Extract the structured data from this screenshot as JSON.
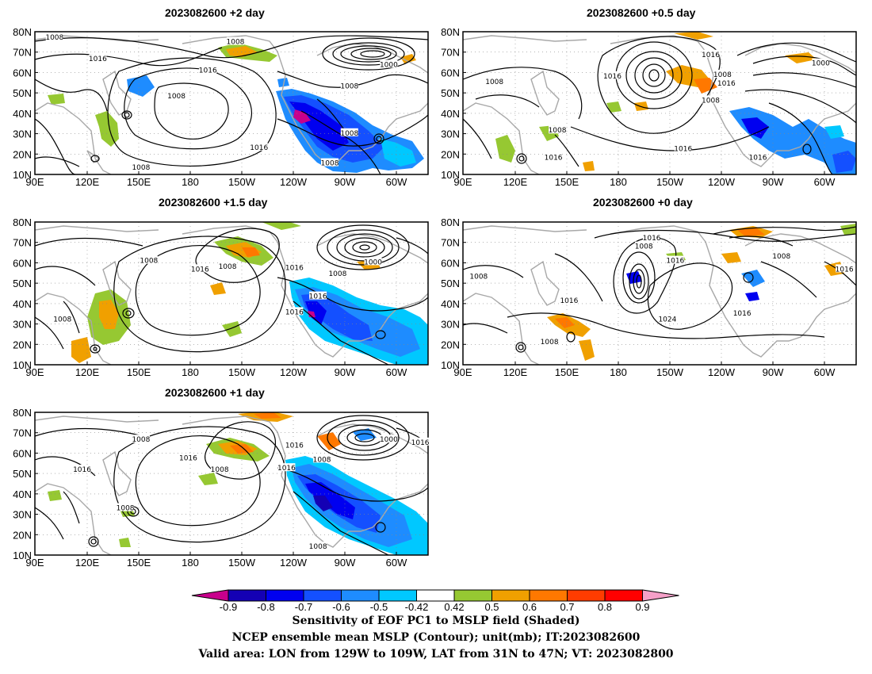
{
  "panels": [
    {
      "id": "p_2day",
      "title": "2023082600 +2 day"
    },
    {
      "id": "p_05day",
      "title": "2023082600 +0.5 day"
    },
    {
      "id": "p_15day",
      "title": "2023082600 +1.5 day"
    },
    {
      "id": "p_0day",
      "title": "2023082600 +0 day"
    },
    {
      "id": "p_1day",
      "title": "2023082600 +1 day"
    }
  ],
  "axes": {
    "lat_labels": [
      "80N",
      "70N",
      "60N",
      "50N",
      "40N",
      "30N",
      "20N",
      "10N"
    ],
    "lon_labels": [
      "90E",
      "120E",
      "150E",
      "180",
      "150W",
      "120W",
      "90W",
      "60W"
    ]
  },
  "contour_labels": {
    "p_2day": [
      [
        "1008",
        0.05,
        0.04
      ],
      [
        "1016",
        0.16,
        0.19
      ],
      [
        "1016",
        0.44,
        0.27
      ],
      [
        "1008",
        0.51,
        0.07
      ],
      [
        "1008",
        0.36,
        0.45
      ],
      [
        "1000",
        0.9,
        0.23
      ],
      [
        "1008",
        0.8,
        0.38
      ],
      [
        "1008",
        0.8,
        0.71
      ],
      [
        "1008",
        0.75,
        0.92
      ],
      [
        "1016",
        0.57,
        0.81
      ],
      [
        "1008",
        0.27,
        0.95
      ]
    ],
    "p_05day": [
      [
        "1016",
        0.63,
        0.16
      ],
      [
        "1000",
        0.91,
        0.22
      ],
      [
        "1016",
        0.38,
        0.31
      ],
      [
        "1008",
        0.63,
        0.48
      ],
      [
        "1008",
        0.66,
        0.3
      ],
      [
        "1016",
        0.67,
        0.36
      ],
      [
        "1008",
        0.08,
        0.35
      ],
      [
        "1016",
        0.23,
        0.88
      ],
      [
        "1016",
        0.56,
        0.82
      ],
      [
        "1016",
        0.75,
        0.88
      ],
      [
        "1008",
        0.24,
        0.69
      ]
    ],
    "p_15day": [
      [
        "1008",
        0.29,
        0.27
      ],
      [
        "1016",
        0.42,
        0.33
      ],
      [
        "1008",
        0.49,
        0.31
      ],
      [
        "1016",
        0.66,
        0.32
      ],
      [
        "1000",
        0.86,
        0.28
      ],
      [
        "1008",
        0.77,
        0.36
      ],
      [
        "1016",
        0.72,
        0.52
      ],
      [
        "1016",
        0.66,
        0.63
      ],
      [
        "1008",
        0.07,
        0.68
      ]
    ],
    "p_0day": [
      [
        "1016",
        0.48,
        0.11
      ],
      [
        "1008",
        0.46,
        0.17
      ],
      [
        "1016",
        0.54,
        0.27
      ],
      [
        "1008",
        0.81,
        0.24
      ],
      [
        "1016",
        0.97,
        0.33
      ],
      [
        "1008",
        0.04,
        0.38
      ],
      [
        "1016",
        0.27,
        0.55
      ],
      [
        "1024",
        0.52,
        0.68
      ],
      [
        "1016",
        0.71,
        0.64
      ],
      [
        "1008",
        0.22,
        0.84
      ]
    ],
    "p_1day": [
      [
        "1008",
        0.27,
        0.19
      ],
      [
        "1016",
        0.66,
        0.23
      ],
      [
        "1016",
        0.39,
        0.32
      ],
      [
        "1008",
        0.47,
        0.4
      ],
      [
        "1008",
        0.73,
        0.33
      ],
      [
        "1000",
        0.9,
        0.19
      ],
      [
        "1016",
        0.98,
        0.21
      ],
      [
        "1016",
        0.12,
        0.4
      ],
      [
        "1016",
        0.64,
        0.39
      ],
      [
        "1008",
        0.23,
        0.67
      ],
      [
        "1008",
        0.72,
        0.94
      ]
    ]
  },
  "colorbar": {
    "labels": [
      "-0.9",
      "-0.8",
      "-0.7",
      "-0.6",
      "-0.5",
      "-0.42",
      "0.42",
      "0.5",
      "0.6",
      "0.7",
      "0.8",
      "0.9"
    ],
    "colors": [
      "#c8008c",
      "#1400b4",
      "#0000f0",
      "#1450ff",
      "#1e8cff",
      "#00c8ff",
      "#ffffff",
      "#96c832",
      "#f0a000",
      "#ff7800",
      "#ff3c00",
      "#ff0000",
      "#f5a0c8"
    ],
    "neg_colors": {
      "-0.9": "#1400b4",
      "-0.8": "#0000f0",
      "-0.7": "#1450ff",
      "-0.6": "#1e8cff",
      "-0.5": "#00c8ff"
    }
  },
  "caption": {
    "line1": "Sensitivity of EOF PC1 to MSLP field (Shaded)",
    "line2": "NCEP ensemble mean MSLP (Contour); unit(mb); IT:2023082600",
    "line3": "Valid area: LON from 129W to 109W, LAT from 31N to 47N; VT: 2023082800"
  }
}
